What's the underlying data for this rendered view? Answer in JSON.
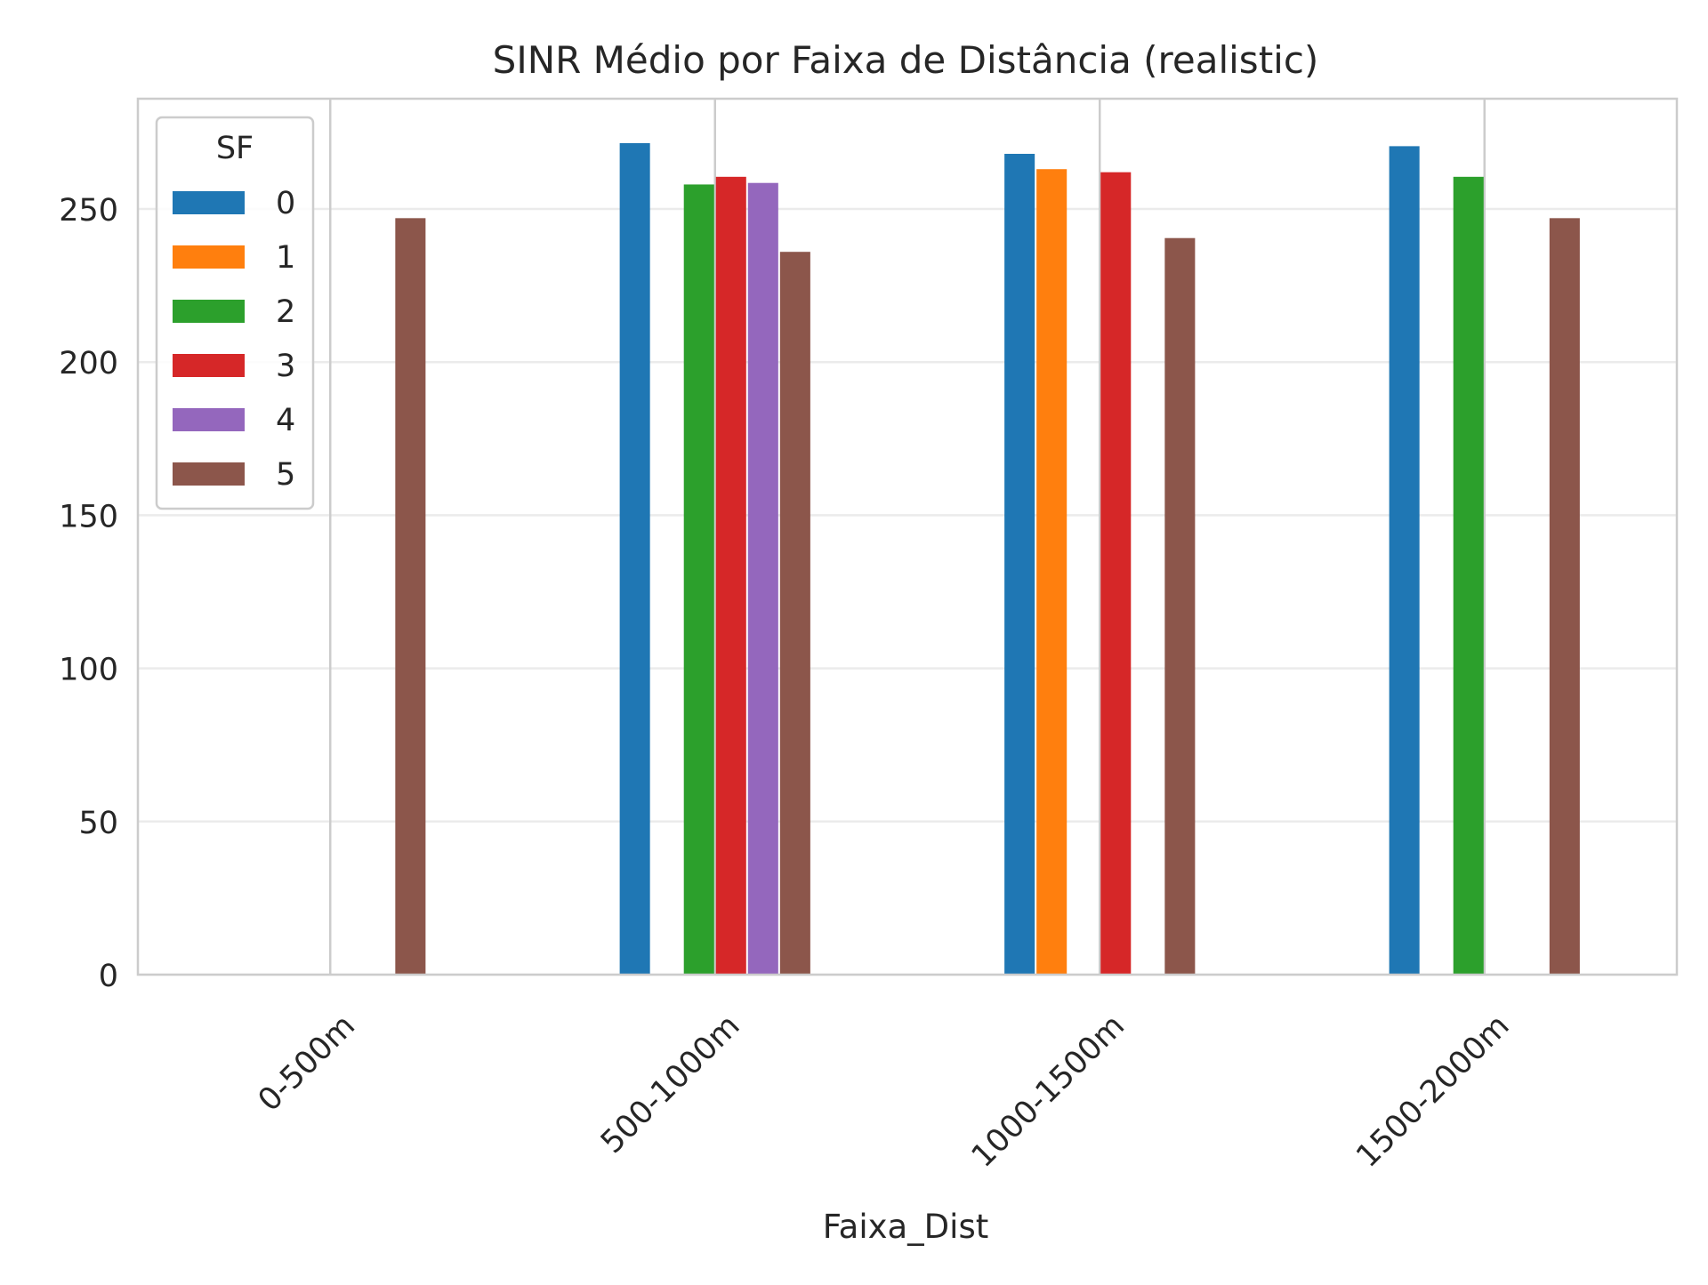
{
  "chart_data": {
    "type": "bar",
    "title": "SINR Médio por Faixa de Distância (realistic)",
    "xlabel": "Faixa_Dist",
    "ylabel": "",
    "categories": [
      "0-500m",
      "500-1000m",
      "1000-1500m",
      "1500-2000m"
    ],
    "ylim": [
      0,
      286
    ],
    "yticks": [
      0,
      50,
      100,
      150,
      200,
      250
    ],
    "grid": true,
    "legend": {
      "title": "SF",
      "placement": "top-left"
    },
    "series": [
      {
        "name": "0",
        "color": "#1f77b4",
        "values": [
          null,
          271.5,
          268.0,
          270.5
        ]
      },
      {
        "name": "1",
        "color": "#ff7f0e",
        "values": [
          null,
          null,
          263.0,
          null
        ]
      },
      {
        "name": "2",
        "color": "#2ca02c",
        "values": [
          null,
          258.0,
          null,
          260.5
        ]
      },
      {
        "name": "3",
        "color": "#d62728",
        "values": [
          null,
          260.5,
          262.0,
          null
        ]
      },
      {
        "name": "4",
        "color": "#9467bd",
        "values": [
          null,
          258.5,
          null,
          null
        ]
      },
      {
        "name": "5",
        "color": "#8c564b",
        "values": [
          247.0,
          236.0,
          240.5,
          247.0
        ]
      }
    ]
  }
}
